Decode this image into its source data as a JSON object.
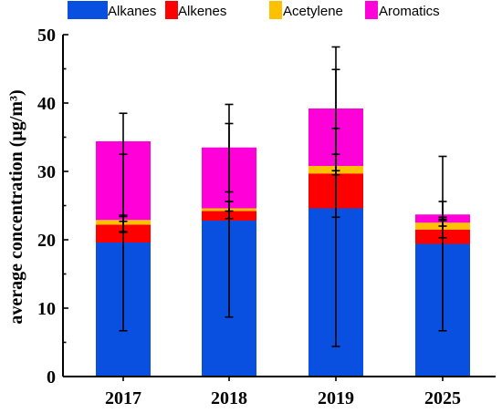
{
  "chart_data": {
    "type": "bar",
    "stacked": true,
    "categories": [
      "2017",
      "2018",
      "2019",
      "2025"
    ],
    "series": [
      {
        "name": "Alkanes",
        "color": "#0a50e0",
        "values": [
          19.6,
          22.8,
          24.6,
          19.4
        ],
        "error": [
          [
            6.7,
            32.5
          ],
          [
            8.7,
            37.0
          ],
          [
            4.4,
            44.9
          ],
          [
            6.7,
            25.6
          ]
        ]
      },
      {
        "name": "Alkenes",
        "color": "#ff0000",
        "values": [
          2.6,
          1.4,
          5.1,
          2.1
        ],
        "error": [
          [
            21.2,
            23.6
          ],
          [
            23.1,
            25.6
          ],
          [
            23.3,
            36.3
          ],
          [
            20.3,
            23.0
          ]
        ]
      },
      {
        "name": "Acetylene",
        "color": "#ffc000",
        "values": [
          0.7,
          0.4,
          1.1,
          1.0
        ],
        "error": [
          [
            22.7,
            23.4
          ],
          [
            24.2,
            25.6
          ],
          [
            29.5,
            32.5
          ],
          [
            22.0,
            23.3
          ]
        ]
      },
      {
        "name": "Aromatics",
        "color": "#ff00d8",
        "values": [
          11.5,
          8.9,
          8.4,
          1.2
        ],
        "error": [
          [
            21.1,
            38.5
          ],
          [
            27.0,
            39.8
          ],
          [
            30.1,
            48.2
          ],
          [
            22.8,
            32.2
          ]
        ]
      }
    ],
    "ylabel": "average concentration (μg/m³)",
    "ylim": [
      0,
      50
    ],
    "yticks": [
      "0",
      "10",
      "20",
      "30",
      "40",
      "50"
    ],
    "grid": false,
    "legend": "top"
  }
}
